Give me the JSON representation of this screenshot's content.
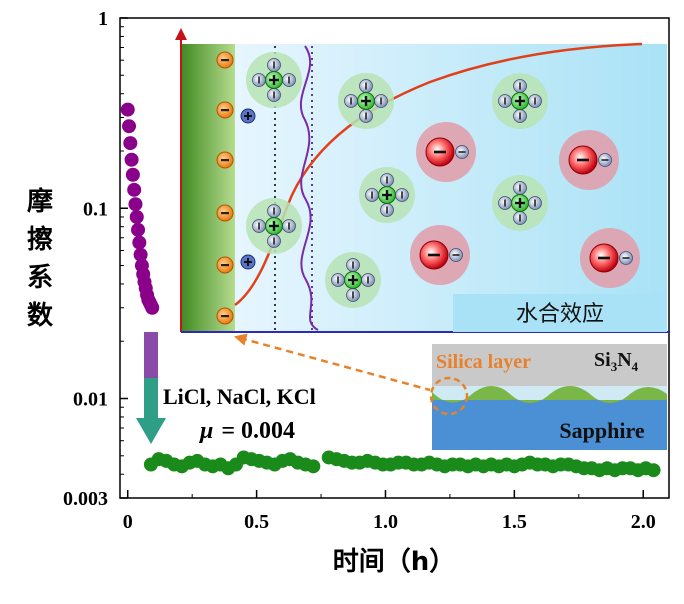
{
  "chart_data": {
    "type": "scatter",
    "xlabel": "时间（h）",
    "ylabel": "摩擦系数",
    "xlim": [
      -0.03,
      2.1
    ],
    "ylim": [
      0.003,
      1
    ],
    "yscale": "log",
    "x_ticks": [
      "0",
      "0.5",
      "1.0",
      "1.5",
      "2.0"
    ],
    "x_tick_values": [
      0,
      0.5,
      1.0,
      1.5,
      2.0
    ],
    "y_ticks": [
      "1",
      "0.1",
      "0.01",
      "0.003"
    ],
    "y_tick_values": [
      1,
      0.1,
      0.01,
      0.003
    ],
    "series": [
      {
        "color": "#8b008b",
        "x": [
          0.0,
          0.005,
          0.01,
          0.015,
          0.02,
          0.025,
          0.03,
          0.035,
          0.04,
          0.045,
          0.05,
          0.055,
          0.06,
          0.065,
          0.07,
          0.075,
          0.08,
          0.085,
          0.09,
          0.095
        ],
        "y": [
          0.33,
          0.27,
          0.22,
          0.18,
          0.15,
          0.125,
          0.105,
          0.09,
          0.077,
          0.066,
          0.057,
          0.05,
          0.045,
          0.041,
          0.038,
          0.035,
          0.033,
          0.032,
          0.031,
          0.03
        ]
      },
      {
        "color": "#1a8a1a",
        "x": [
          0.09,
          0.12,
          0.15,
          0.18,
          0.21,
          0.24,
          0.27,
          0.3,
          0.33,
          0.36,
          0.39,
          0.42,
          0.45,
          0.48,
          0.51,
          0.54,
          0.57,
          0.6,
          0.63,
          0.66,
          0.69,
          0.72,
          0.78,
          0.81,
          0.84,
          0.87,
          0.9,
          0.93,
          0.96,
          0.99,
          1.02,
          1.05,
          1.08,
          1.11,
          1.14,
          1.17,
          1.2,
          1.23,
          1.26,
          1.29,
          1.32,
          1.35,
          1.38,
          1.41,
          1.44,
          1.47,
          1.5,
          1.53,
          1.56,
          1.59,
          1.62,
          1.65,
          1.68,
          1.71,
          1.74,
          1.77,
          1.8,
          1.83,
          1.86,
          1.89,
          1.92,
          1.95,
          1.98,
          2.01,
          2.04
        ],
        "y": [
          0.0045,
          0.0048,
          0.0047,
          0.0045,
          0.0044,
          0.0046,
          0.0047,
          0.0045,
          0.0044,
          0.0045,
          0.0043,
          0.0045,
          0.0049,
          0.0048,
          0.0047,
          0.0046,
          0.0045,
          0.0047,
          0.0048,
          0.0046,
          0.0045,
          0.0044,
          0.0049,
          0.0048,
          0.0047,
          0.0046,
          0.0046,
          0.0047,
          0.0046,
          0.0045,
          0.0045,
          0.0046,
          0.0046,
          0.0045,
          0.0045,
          0.0046,
          0.0045,
          0.0044,
          0.0045,
          0.0045,
          0.0044,
          0.0045,
          0.0044,
          0.0045,
          0.0044,
          0.0045,
          0.0044,
          0.0045,
          0.0046,
          0.0045,
          0.0045,
          0.0044,
          0.0045,
          0.0045,
          0.0044,
          0.0043,
          0.0043,
          0.0042,
          0.0043,
          0.0042,
          0.0043,
          0.0043,
          0.0042,
          0.0043,
          0.0042
        ]
      }
    ],
    "annotations": {
      "salts": "LiCl, NaCl, KCl",
      "mu_symbol": "μ",
      "mu_value": "= 0.004",
      "inset_label": "水合效应",
      "silica": "Silica layer",
      "si": "Si",
      "si_sub": "3",
      "n": "N",
      "n_sub": "4",
      "sapphire": "Sapphire"
    }
  },
  "colors": {
    "purple": "#8b008b",
    "green": "#1a8a1a",
    "arrow_purple": "#8a4aa8",
    "arrow_teal": "#2e9e86",
    "curve_red": "#e0401a",
    "orange_dash": "#e8812c",
    "sapphire": "#4b8fd4",
    "si3n4": "#c9c9c9"
  }
}
